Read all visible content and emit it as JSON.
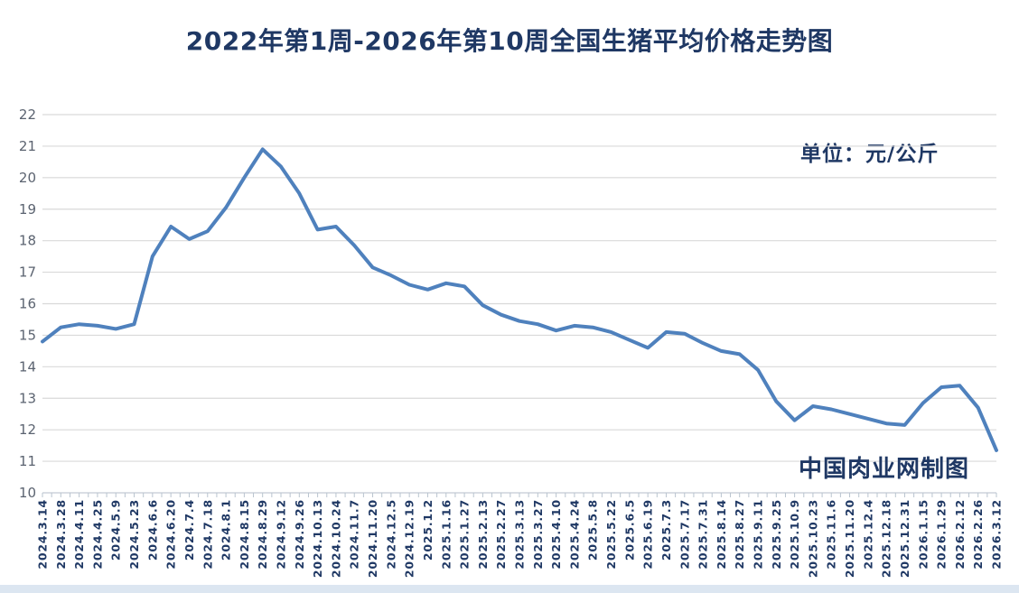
{
  "title": "2022年第1周-2026年第10周全国生猪平均价格走势图",
  "unit_label": "单位：元/公斤",
  "watermark": "中国肉业网制图",
  "colors": {
    "text_navy": "#1f3864",
    "line": "#4f81bd",
    "gridline": "#d9d9d9",
    "axis_line": "#c3cbd4",
    "tick": "#b9c4cf",
    "y_label": "#5b6370",
    "bottom_strip": "#dce6f1"
  },
  "chart_data": {
    "type": "line",
    "title": "2022年第1周-2026年第10周全国生猪平均价格走势图",
    "unit": "元/公斤",
    "series_name": "全国生猪平均价格",
    "xlabel": "",
    "ylabel": "",
    "ylim": [
      10,
      22
    ],
    "ytick_step": 1,
    "yticks": [
      10,
      11,
      12,
      13,
      14,
      15,
      16,
      17,
      18,
      19,
      20,
      21,
      22
    ],
    "grid": true,
    "legend": "none",
    "x": [
      "2024.3.14",
      "2024.3.28",
      "2024.4.11",
      "2024.4.25",
      "2024.5.9",
      "2024.5.23",
      "2024.6.6",
      "2024.6.20",
      "2024.7.4",
      "2024.7.18",
      "2024.8.1",
      "2024.8.15",
      "2024.8.29",
      "2024.9.12",
      "2024.9.26",
      "2024.10.13",
      "2024.10.24",
      "2024.11.7",
      "2024.11.20",
      "2024.12.5",
      "2024.12.19",
      "2025.1.2",
      "2025.1.16",
      "2025.1.27",
      "2025.2.13",
      "2025.2.27",
      "2025.3.13",
      "2025.3.27",
      "2025.4.10",
      "2025.4.24",
      "2025.5.8",
      "2025.5.22",
      "2025.6.5",
      "2025.6.19",
      "2025.7.3",
      "2025.7.17",
      "2025.7.31",
      "2025.8.14",
      "2025.8.27",
      "2025.9.11",
      "2025.9.25",
      "2025.10.9",
      "2025.10.23",
      "2025.11.6",
      "2025.11.20",
      "2025.12.4",
      "2025.12.18",
      "2025.12.31",
      "2026.1.15",
      "2026.1.29",
      "2026.2.12",
      "2026.2.26",
      "2026.3.12"
    ],
    "values": [
      14.8,
      15.25,
      15.35,
      15.3,
      15.2,
      15.35,
      17.5,
      18.45,
      18.05,
      18.3,
      19.05,
      20.0,
      20.9,
      20.35,
      19.5,
      18.35,
      18.45,
      17.85,
      17.15,
      16.9,
      16.6,
      16.45,
      16.65,
      16.55,
      15.95,
      15.65,
      15.45,
      15.35,
      15.15,
      15.3,
      15.25,
      15.1,
      14.85,
      14.6,
      15.1,
      15.05,
      14.75,
      14.5,
      14.4,
      13.9,
      12.9,
      12.3,
      12.75,
      12.65,
      12.5,
      12.35,
      12.2,
      12.15,
      12.85,
      13.35,
      13.4,
      12.7,
      11.35
    ]
  }
}
